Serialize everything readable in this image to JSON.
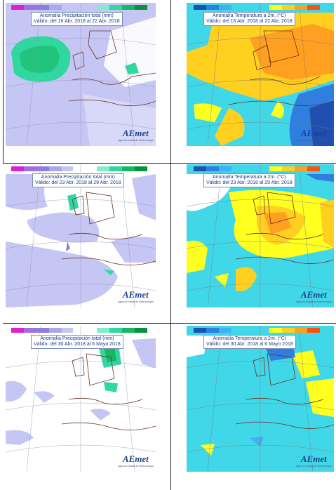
{
  "panels": [
    {
      "title": "Anomalía Precipitación total (mm)",
      "subtitle": "Válido: del 16 Abr. 2018 al 22 Abr. 2018",
      "logo": "AEmet",
      "logo_sub": "Agencia Estatal de Meteorología"
    },
    {
      "title": "Anomalía Temperatura a 2m. (°C)",
      "subtitle": "Válido: del 16 Abr. 2018 al 22 Abr. 2018",
      "logo": "AEmet",
      "logo_sub": "Agencia Estatal de Meteorología"
    },
    {
      "title": "Anomalía Precipitación total (mm)",
      "subtitle": "Válido: del 23 Abr. 2018 al 29 Abr. 2018",
      "logo": "AEmet",
      "logo_sub": "Agencia Estatal de Meteorología"
    },
    {
      "title": "Anomalía Temperatura a 2m. (°C)",
      "subtitle": "Válido: del 23 Abr. 2018 al 29 Abr. 2018",
      "logo": "AEmet",
      "logo_sub": "Agencia Estatal de Meteorología"
    },
    {
      "title": "Anomalía Precipitación total (mm)",
      "subtitle": "Válido: del 30 Abr. 2018 al 6 Mayo 2018",
      "logo": "AEmet",
      "logo_sub": "Agencia Estatal de Meteorología"
    },
    {
      "title": "Anomalía Temperatura a 2m. (°C)",
      "subtitle": "Válido: del 30 Abr. 2018 al 6 Mayo 2018",
      "logo": "AEmet",
      "logo_sub": "Agencia Estatal de Meteorología"
    }
  ],
  "colors": {
    "precip_dry": [
      "#e020d0",
      "#a070e0",
      "#8a7ee0",
      "#a8a8ee",
      "#c6c6f4"
    ],
    "precip_wet": [
      "#7ef0c8",
      "#30d8a0",
      "#18b860",
      "#0a9040"
    ],
    "temp_cold": [
      "#1f4fb0",
      "#2f7fe0",
      "#3fb0f0",
      "#40d8e8"
    ],
    "temp_warm": [
      "#ffff20",
      "#ffd020",
      "#ffa020",
      "#ff5010"
    ],
    "precip_fill": "#c6c6f4",
    "temp_cyan": "#40d8e8",
    "coast": "#6a3020"
  }
}
